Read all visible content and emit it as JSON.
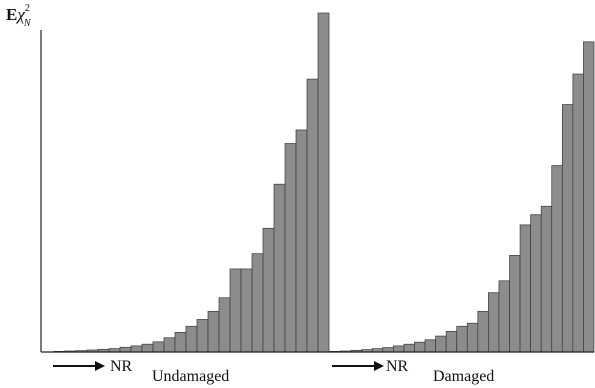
{
  "chart_data": {
    "type": "bar",
    "y_axis_label": {
      "prefix": "E",
      "symbol": "χ",
      "superscript": "2",
      "subscript": "N"
    },
    "arrow_label": "NR",
    "ylim": [
      0,
      100
    ],
    "grid": false,
    "bar_color": "#8c8c8c",
    "bar_edge_color": "#3a3a3a",
    "series": [
      {
        "name": "Undamaged",
        "values": [
          0.2,
          0.3,
          0.4,
          0.6,
          0.8,
          1.0,
          1.4,
          1.8,
          2.3,
          3,
          4.2,
          5.8,
          7.6,
          9.6,
          12,
          16,
          24.5,
          24.5,
          29,
          36.5,
          49.5,
          61.5,
          65.5,
          80.5,
          100
        ]
      },
      {
        "name": "Damaged",
        "values": [
          0.2,
          0.3,
          0.5,
          0.7,
          1.0,
          1.3,
          1.8,
          2.3,
          2.9,
          3.6,
          4.7,
          6.1,
          7.6,
          8.5,
          12,
          17.5,
          21,
          28.5,
          37.5,
          40.5,
          43,
          55,
          73,
          82,
          91.5
        ]
      }
    ]
  }
}
